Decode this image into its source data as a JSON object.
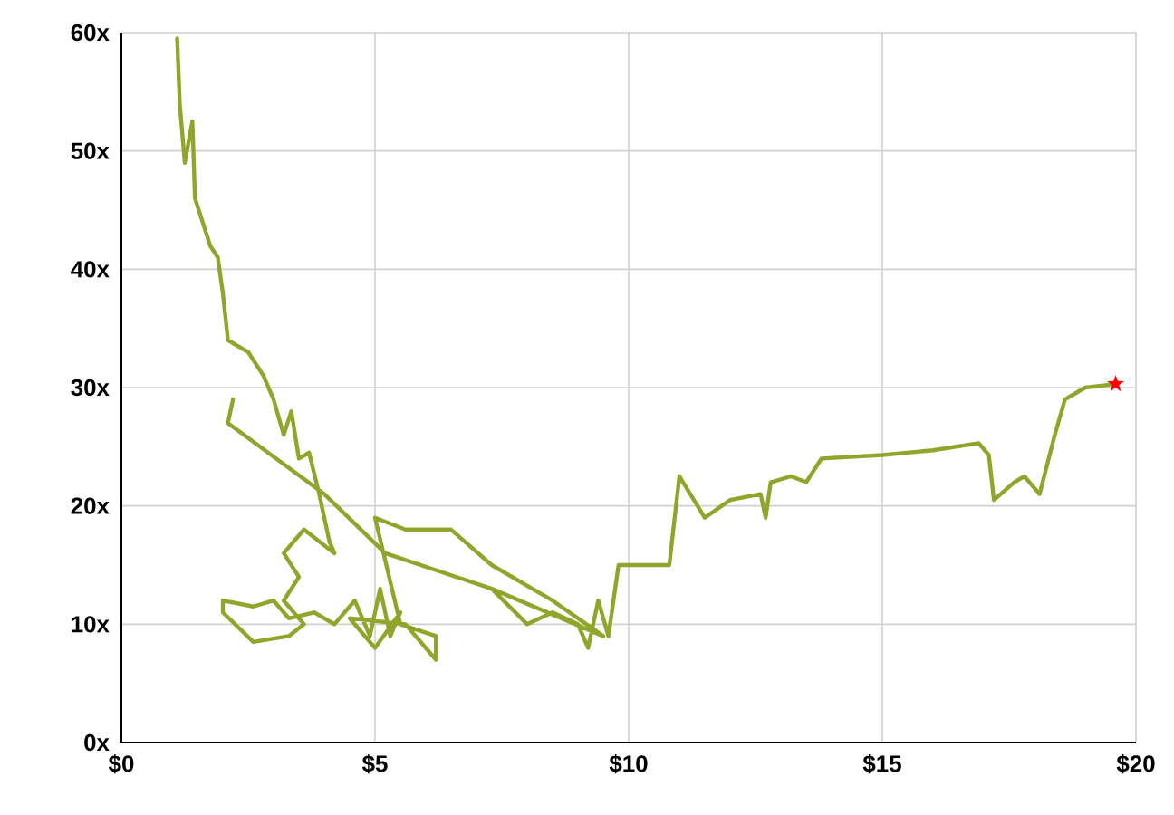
{
  "chart_data": {
    "type": "line",
    "grid": true,
    "xlim": [
      0,
      20
    ],
    "ylim": [
      0,
      60
    ],
    "xticks": [
      {
        "value": 0,
        "label": "$0"
      },
      {
        "value": 5,
        "label": "$5"
      },
      {
        "value": 10,
        "label": "$10"
      },
      {
        "value": 15,
        "label": "$15"
      },
      {
        "value": 20,
        "label": "$20"
      }
    ],
    "yticks": [
      {
        "value": 0,
        "label": "0x"
      },
      {
        "value": 10,
        "label": "10x"
      },
      {
        "value": 20,
        "label": "20x"
      },
      {
        "value": 30,
        "label": "30x"
      },
      {
        "value": 40,
        "label": "40x"
      },
      {
        "value": 50,
        "label": "50x"
      },
      {
        "value": 60,
        "label": "60x"
      }
    ],
    "series": [
      {
        "color": "#8fa62b",
        "x": [
          1.1,
          1.15,
          1.25,
          1.4,
          1.45,
          1.6,
          1.75,
          1.9,
          2.0,
          2.1,
          2.5,
          2.8,
          3.0,
          3.2,
          3.35,
          3.5,
          3.7,
          3.9,
          4.1,
          4.2,
          3.6,
          3.2,
          3.5,
          3.2,
          3.6,
          3.3,
          2.6,
          2.0,
          2.0,
          2.6,
          3.0,
          3.3,
          3.8,
          4.2,
          4.6,
          4.9,
          5.1,
          5.3,
          5.5,
          5.0,
          4.5,
          5.6,
          6.2,
          6.2,
          5.5,
          5.0,
          5.6,
          6.5,
          7.3,
          8.5,
          9.5,
          7.3,
          5.2,
          4.0,
          2.1,
          2.2,
          2.1,
          4.0,
          5.2,
          7.3,
          8.0,
          8.5,
          9.0,
          9.2,
          9.4,
          9.6,
          9.8,
          10.4,
          10.8,
          11.0,
          11.5,
          12.0,
          12.6,
          12.7,
          12.8,
          13.2,
          13.5,
          13.8,
          15.0,
          16.0,
          16.9,
          17.1,
          17.2,
          17.6,
          17.8,
          18.1,
          18.4,
          18.6,
          19.0,
          19.6
        ],
        "values": [
          59.5,
          54,
          49,
          52.5,
          46,
          44,
          42,
          41,
          38,
          34,
          33,
          31,
          29,
          26,
          28,
          24,
          24.5,
          21,
          17,
          16,
          18,
          16,
          14,
          12,
          10,
          9,
          8.5,
          11,
          12,
          11.5,
          12,
          10.5,
          11,
          10,
          12,
          9,
          13,
          9,
          11,
          8,
          10.5,
          10,
          7,
          9,
          10,
          19,
          18,
          18,
          15,
          12,
          9,
          13,
          16,
          21,
          27,
          29,
          27,
          21,
          16,
          13,
          10,
          11,
          10,
          8,
          12,
          9,
          15,
          15,
          15,
          22.5,
          19,
          20.5,
          21,
          19,
          22,
          22.5,
          22,
          24,
          24.3,
          24.7,
          25.3,
          24.3,
          20.5,
          22,
          22.5,
          21,
          26,
          29,
          30,
          30.3
        ]
      },
      {
        "type": "scatter",
        "color": "#ff0000",
        "marker": "star",
        "x": [
          19.6
        ],
        "values": [
          30.3
        ]
      }
    ]
  }
}
